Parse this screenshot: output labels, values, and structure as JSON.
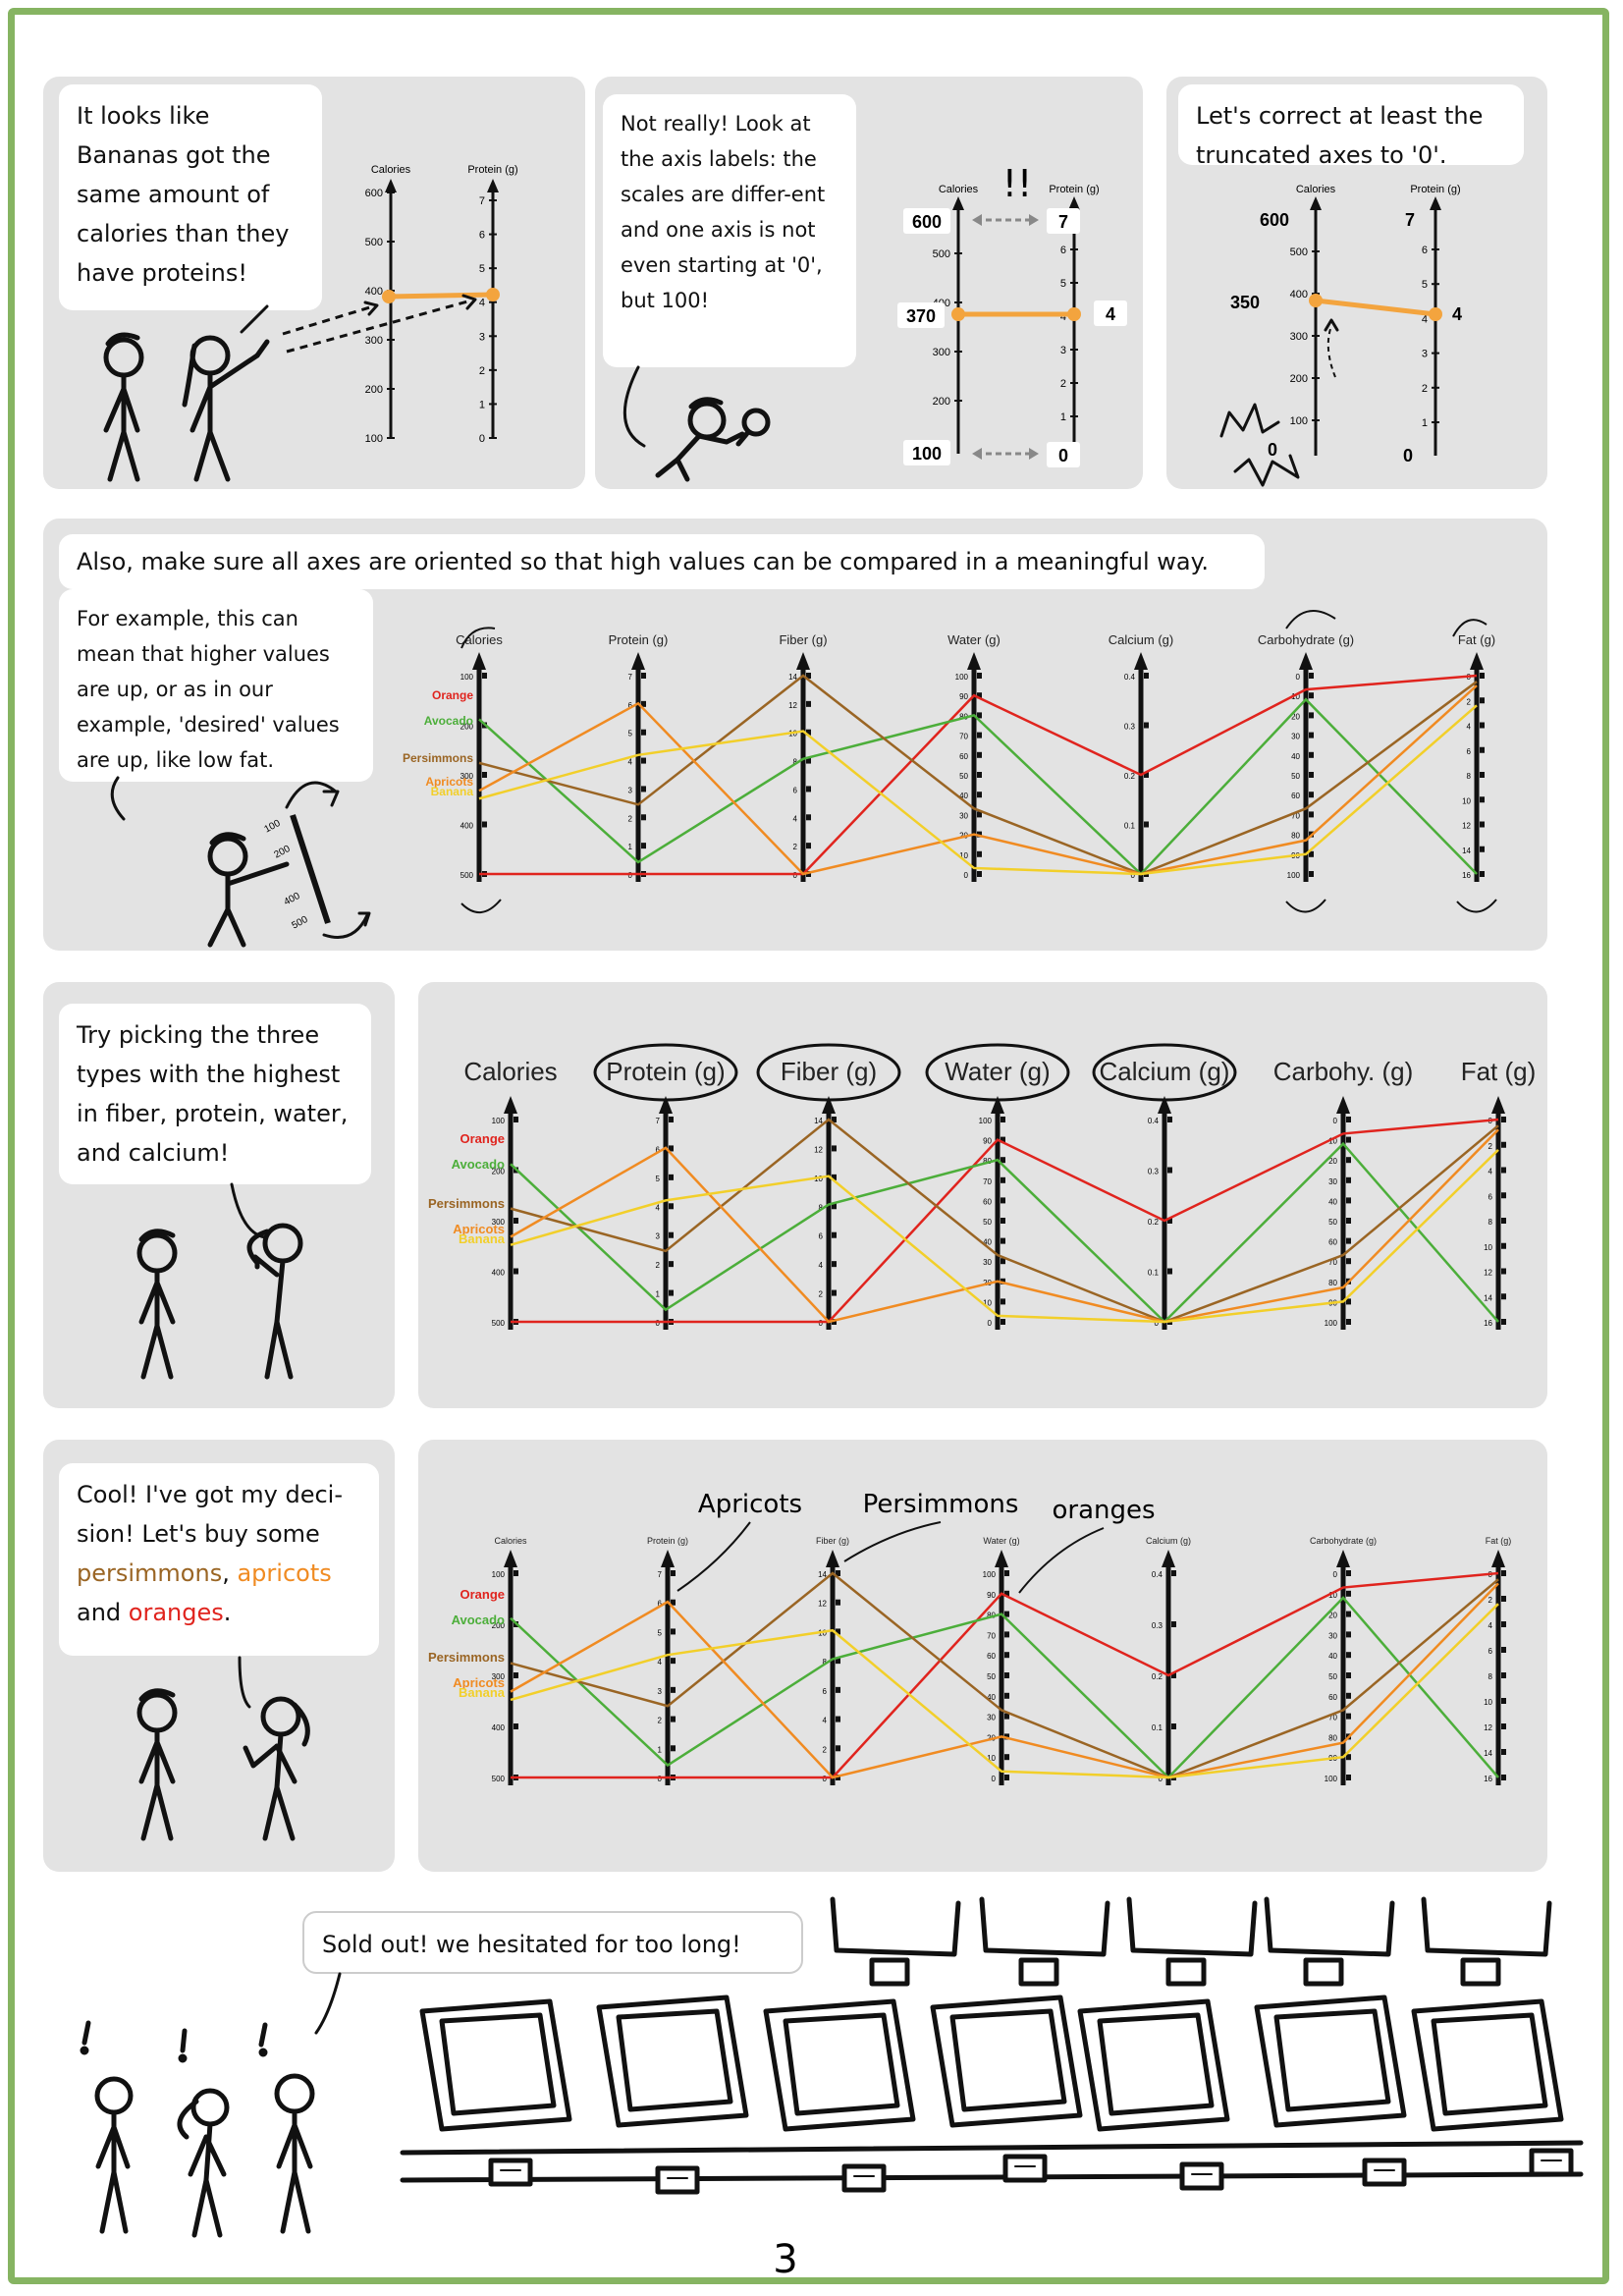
{
  "colors": {
    "frame": "#86b462",
    "panel": "#e3e3e3",
    "orange": "#e0241e",
    "avocado": "#4cae3a",
    "persimmons": "#9a6524",
    "apricots": "#f08b22",
    "banana": "#f2cf2a",
    "highlight_line": "#f3a43e"
  },
  "panel1": {
    "bubble": "It looks like Bananas got the same amount of calories than they have proteins!",
    "axis_left_title": "Calories",
    "axis_right_title": "Protein (g)",
    "left_ticks": [
      "600",
      "500",
      "400",
      "300",
      "200",
      "100"
    ],
    "right_ticks": [
      "7",
      "6",
      "5",
      "4",
      "3",
      "2",
      "1",
      "0"
    ]
  },
  "panel2": {
    "bubble": "Not really! Look at the axis labels: the scales are differ-ent and one axis is not even starting at '0', but 100!",
    "exclaim": "!!",
    "axis_left_title": "Calories",
    "axis_right_title": "Protein (g)",
    "left_ticks": [
      "500",
      "400",
      "300",
      "200"
    ],
    "right_ticks": [
      "6",
      "5",
      "4",
      "3",
      "2",
      "1"
    ],
    "labels": {
      "top_left": "600",
      "top_right": "7",
      "mid_left": "370",
      "mid_right": "4",
      "bot_left": "100",
      "bot_right": "0"
    }
  },
  "panel3": {
    "bubble": "Let's correct at least the truncated axes to '0'.",
    "axis_left_title": "Calories",
    "axis_right_title": "Protein (g)",
    "left_ticks": [
      "500",
      "400",
      "300",
      "200",
      "100"
    ],
    "right_ticks": [
      "6",
      "5",
      "4",
      "3",
      "2",
      "1"
    ],
    "labels": {
      "top_left": "600",
      "top_right": "7",
      "mid_left": "350",
      "mid_right": "4",
      "bot_left": "0",
      "bot_right": "0"
    }
  },
  "panel4": {
    "caption": "Also, make sure all axes are oriented so that high values can be compared in a meaningful way.",
    "bubble": "For example, this can mean that higher values are up, or as in our example, 'desired' values are up, like low fat.",
    "rotated_ticks": [
      "100",
      "200",
      "400",
      "500"
    ]
  },
  "panel5": {
    "bubble": "Try picking the three types with the highest in fiber, protein, water, and calcium!"
  },
  "panel6": {
    "bubble_parts": [
      "Cool! I've got my deci-sion! Let's buy some ",
      "persimmons",
      ", ",
      "apricots",
      " and ",
      "oranges",
      "."
    ],
    "annotations": [
      "Apricots",
      "Persimmons",
      "oranges"
    ]
  },
  "panel7": {
    "bubble": "Sold out! we hesitated for too long!"
  },
  "page_number": "3",
  "chart_data": {
    "type": "parallel-coordinates",
    "axes": [
      {
        "key": "cal",
        "short": "Calories",
        "ticks": [
          "100",
          "200",
          "300",
          "400",
          "500"
        ],
        "inverted": true
      },
      {
        "key": "pro",
        "short": "Protein (g)",
        "ticks": [
          "0",
          "1",
          "2",
          "3",
          "4",
          "5",
          "6",
          "7"
        ]
      },
      {
        "key": "fib",
        "short": "Fiber (g)",
        "ticks": [
          "0",
          "2",
          "4",
          "6",
          "8",
          "10",
          "12",
          "14"
        ]
      },
      {
        "key": "wat",
        "short": "Water (g)",
        "ticks": [
          "0",
          "10",
          "20",
          "30",
          "40",
          "50",
          "60",
          "70",
          "80",
          "90",
          "100"
        ]
      },
      {
        "key": "cac",
        "short": "Calcium (g)",
        "ticks": [
          "0",
          "0.1",
          "0.2",
          "0.3",
          "0.4"
        ]
      },
      {
        "key": "car",
        "short": "Carbohydrate (g)",
        "ticks": [
          "0",
          "10",
          "20",
          "30",
          "40",
          "50",
          "60",
          "70",
          "80",
          "90",
          "100"
        ],
        "inverted": true
      },
      {
        "key": "fat",
        "short": "Fat (g)",
        "ticks": [
          "0",
          "2",
          "4",
          "6",
          "8",
          "10",
          "12",
          "14",
          "16"
        ],
        "inverted": true
      }
    ],
    "axis_titles_panel5": [
      "Calories",
      "Protein (g)",
      "Fiber (g)",
      "Water (g)",
      "Calcium (g)",
      "Carbohy. (g)",
      "Fat (g)"
    ],
    "series": [
      {
        "name": "Orange",
        "values": [
          0.0,
          0.0,
          0.0,
          0.9,
          0.5,
          0.93,
          1.0
        ]
      },
      {
        "name": "Avocado",
        "values": [
          0.78,
          0.06,
          0.58,
          0.8,
          0.0,
          0.88,
          0.0
        ]
      },
      {
        "name": "Persimmons",
        "values": [
          0.56,
          0.35,
          1.0,
          0.33,
          0.0,
          0.33,
          0.97
        ]
      },
      {
        "name": "Apricots",
        "values": [
          0.42,
          0.86,
          0.0,
          0.2,
          0.0,
          0.17,
          0.95
        ]
      },
      {
        "name": "Banana",
        "values": [
          0.38,
          0.6,
          0.72,
          0.03,
          0.0,
          0.1,
          0.85
        ]
      }
    ]
  }
}
